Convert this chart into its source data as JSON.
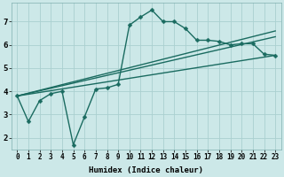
{
  "xlabel": "Humidex (Indice chaleur)",
  "bg_color": "#cce8e8",
  "line_color": "#1a6b60",
  "grid_color": "#aad0d0",
  "ylim": [
    1.5,
    7.8
  ],
  "xlim": [
    -0.5,
    23.5
  ],
  "yticks": [
    2,
    3,
    4,
    5,
    6,
    7
  ],
  "xticks": [
    0,
    1,
    2,
    3,
    4,
    5,
    6,
    7,
    8,
    9,
    10,
    11,
    12,
    13,
    14,
    15,
    16,
    17,
    18,
    19,
    20,
    21,
    22,
    23
  ],
  "series1_x": [
    0,
    1,
    2,
    3,
    4,
    5,
    6,
    7,
    8,
    9,
    10,
    11,
    12,
    13,
    14,
    15,
    16,
    17,
    18,
    19,
    20,
    21,
    22,
    23
  ],
  "series1_y": [
    3.8,
    2.7,
    3.6,
    3.9,
    4.0,
    1.7,
    2.9,
    4.1,
    4.15,
    4.3,
    6.85,
    7.2,
    7.5,
    7.0,
    7.0,
    6.7,
    6.2,
    6.2,
    6.15,
    6.0,
    6.05,
    6.05,
    5.6,
    5.55
  ],
  "series2_x": [
    0,
    23
  ],
  "series2_y": [
    3.8,
    5.55
  ],
  "series3_x": [
    0,
    23
  ],
  "series3_y": [
    3.8,
    6.35
  ],
  "series4_x": [
    0,
    23
  ],
  "series4_y": [
    3.8,
    6.6
  ],
  "tick_fontsize": 5.5,
  "label_fontsize": 6.5,
  "linewidth": 1.0,
  "markersize": 2.5
}
